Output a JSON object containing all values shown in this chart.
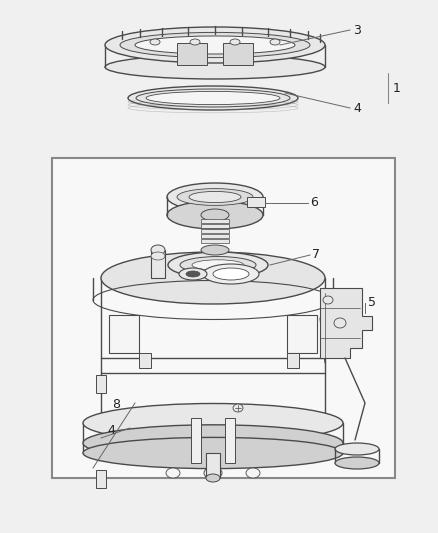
{
  "bg_color": "#f0f0f0",
  "line_color": "#4a4a4a",
  "fill_light": "#f5f5f5",
  "fill_mid": "#e8e8e8",
  "fill_dark": "#d0d0d0",
  "label_color": "#222222",
  "fig_width": 4.38,
  "fig_height": 5.33,
  "dpi": 100
}
